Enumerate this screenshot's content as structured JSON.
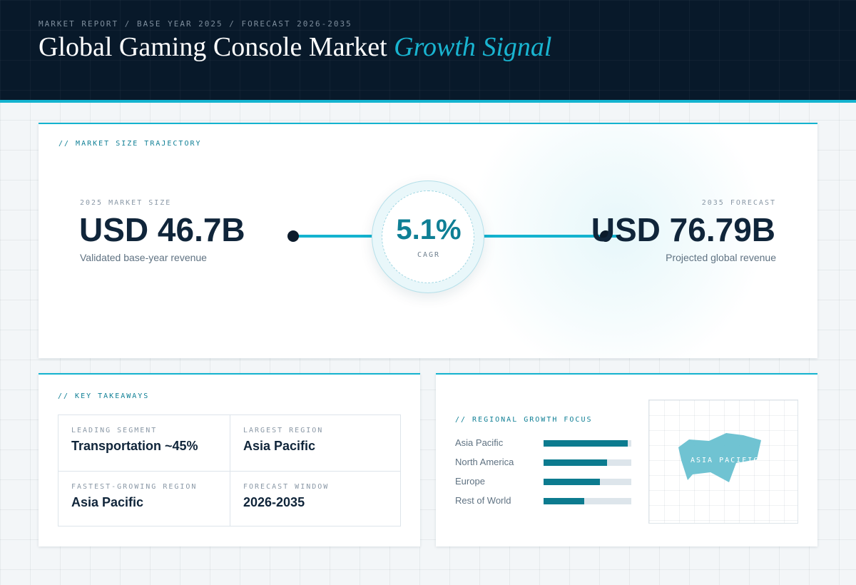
{
  "header": {
    "eyebrow": "MARKET REPORT / BASE YEAR 2025 / FORECAST 2026-2035",
    "title_main": "Global Gaming Console Market",
    "title_accent": "Growth Signal"
  },
  "trajectory": {
    "section_label": "// MARKET SIZE TRAJECTORY",
    "base": {
      "label": "2025 MARKET SIZE",
      "value": "USD 46.7B",
      "sub": "Validated base-year revenue"
    },
    "forecast": {
      "label": "2035 FORECAST",
      "value": "USD 76.79B",
      "sub": "Projected global revenue"
    },
    "cagr": {
      "value": "5.1%",
      "label": "CAGR"
    }
  },
  "takeaways": {
    "section_label": "// KEY TAKEAWAYS",
    "cells": [
      {
        "label": "LEADING SEGMENT",
        "value": "Transportation ~45%"
      },
      {
        "label": "LARGEST REGION",
        "value": "Asia Pacific"
      },
      {
        "label": "FASTEST-GROWING REGION",
        "value": "Asia Pacific"
      },
      {
        "label": "FORECAST WINDOW",
        "value": "2026-2035"
      }
    ]
  },
  "regional": {
    "section_label": "// REGIONAL GROWTH FOCUS",
    "map_label": "ASIA PACIFIC"
  },
  "chart_data": {
    "type": "bar",
    "orientation": "horizontal",
    "categories": [
      "Asia Pacific",
      "North America",
      "Europe",
      "Rest of World"
    ],
    "values": [
      0.96,
      0.72,
      0.64,
      0.46
    ],
    "xlim": [
      0,
      1
    ],
    "grid": false,
    "colors": {
      "fill": "#0c7b8f",
      "track": "#dde5eb"
    }
  },
  "colors": {
    "accent": "#14b3cf",
    "header_bg": "#08192a",
    "text_dark": "#10253a",
    "teal_dark": "#0f7f95"
  }
}
